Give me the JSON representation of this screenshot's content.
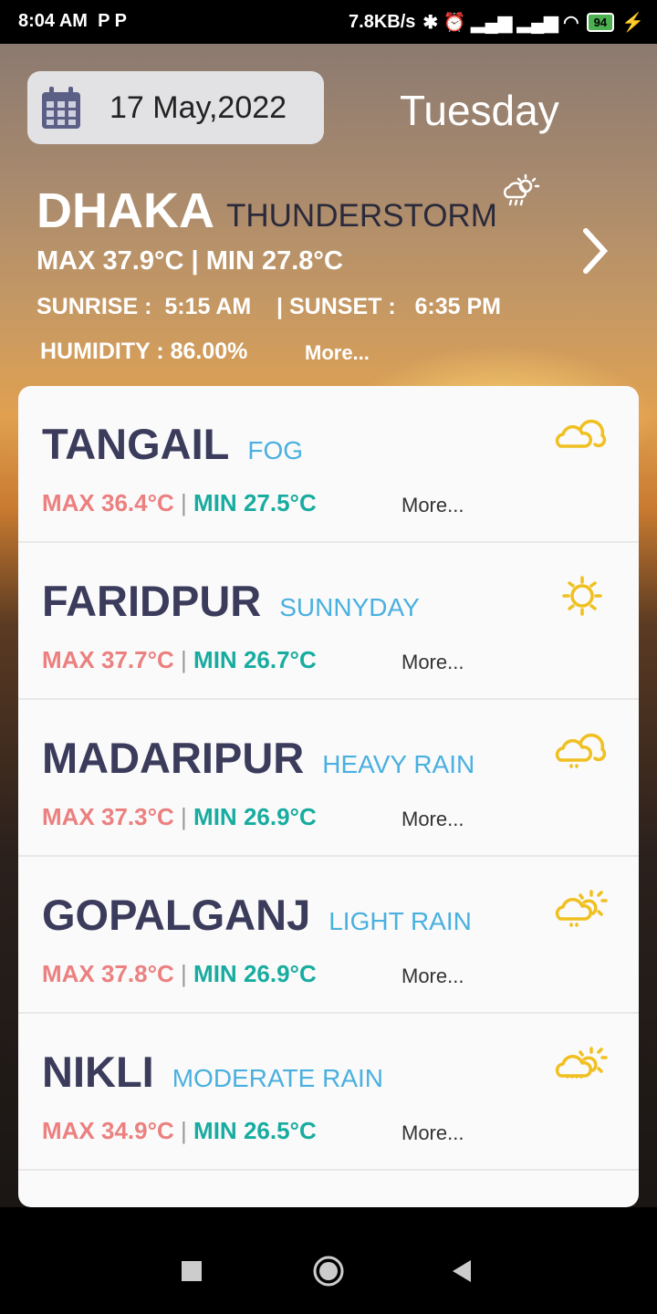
{
  "status_bar": {
    "time": "8:04 AM",
    "notif": "P  P",
    "speed": "7.8KB/s",
    "battery": "94"
  },
  "header": {
    "date": "17 May,2022",
    "day": "Tuesday"
  },
  "current": {
    "city": "DHAKA",
    "condition": "THUNDERSTORM",
    "icon": "sun-cloud-rain-icon",
    "max_label": "MAX",
    "max": "37.9°C",
    "min_label": "MIN",
    "min": "27.8°C",
    "sunrise_label": "SUNRISE :",
    "sunrise": "5:15 AM",
    "sunset_label": "| SUNSET :",
    "sunset": "6:35 PM",
    "humidity_label": "HUMIDITY :",
    "humidity": "86.00%",
    "more": "More..."
  },
  "colors": {
    "city": "#3b3b5c",
    "condition": "#4ab0e0",
    "max": "#ec8080",
    "min": "#18aca0",
    "icon": "#f0c020"
  },
  "cities": [
    {
      "name": "TANGAIL",
      "condition": "FOG",
      "max": "36.4°C",
      "min": "27.5°C",
      "icon": "cloud-icon"
    },
    {
      "name": "FARIDPUR",
      "condition": "SUNNYDAY",
      "max": "37.7°C",
      "min": "26.7°C",
      "icon": "sun-icon"
    },
    {
      "name": "MADARIPUR",
      "condition": "HEAVY RAIN",
      "max": "37.3°C",
      "min": "26.9°C",
      "icon": "cloud-rain-icon"
    },
    {
      "name": "GOPALGANJ",
      "condition": "LIGHT RAIN",
      "max": "37.8°C",
      "min": "26.9°C",
      "icon": "sun-cloud-rain-icon"
    },
    {
      "name": "NIKLI",
      "condition": "MODERATE RAIN",
      "max": "34.9°C",
      "min": "26.5°C",
      "icon": "sun-cloud-drizzle-icon"
    }
  ],
  "labels": {
    "max": "MAX",
    "min": "MIN",
    "sep": "|",
    "more": "More..."
  }
}
